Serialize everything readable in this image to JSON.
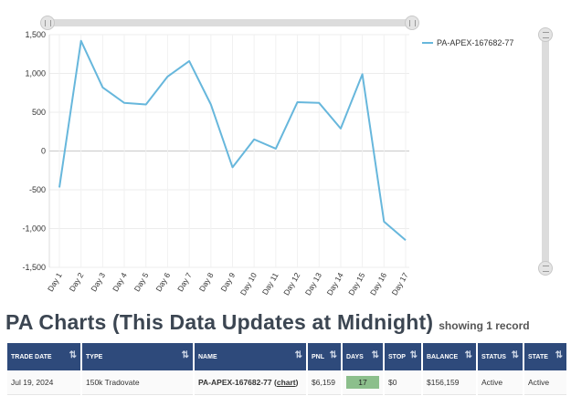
{
  "chart_data": {
    "type": "line",
    "categories": [
      "Day 1",
      "Day 2",
      "Day 3",
      "Day 4",
      "Day 5",
      "Day 6",
      "Day 7",
      "Day 8",
      "Day 9",
      "Day 10",
      "Day 11",
      "Day 12",
      "Day 13",
      "Day 14",
      "Day 15",
      "Day 16",
      "Day 17"
    ],
    "series": [
      {
        "name": "PA-APEX-167682-77",
        "values": [
          -470,
          1420,
          820,
          620,
          600,
          960,
          1160,
          600,
          -210,
          150,
          30,
          630,
          620,
          290,
          990,
          -910,
          -1150
        ]
      }
    ],
    "yticks": [
      "1,500",
      "1,000",
      "500",
      "0",
      "-500",
      "-1,000",
      "-1,500"
    ],
    "ylim": [
      -1500,
      1500
    ],
    "grid": true,
    "color": "#67b7dc",
    "legend": "top-right"
  },
  "heading": {
    "title": "PA Charts (This Data Updates at Midnight)",
    "count": "showing 1 record"
  },
  "table": {
    "headers": [
      "TRADE DATE",
      "TYPE",
      "NAME",
      "PNL",
      "DAYS",
      "STOP",
      "BALANCE",
      "STATUS",
      "STATE"
    ],
    "row": {
      "trade_date": "Jul 19, 2024",
      "type": "150k Tradovate",
      "name": "PA-APEX-167682-77",
      "chart_link": "chart",
      "pnl": "$6,159",
      "days": "17",
      "stop": "$0",
      "balance": "$156,159",
      "status": "Active",
      "state": "Active"
    }
  },
  "icons": {
    "sort": "sort-arrows-icon",
    "slider_handle": "grip-icon"
  }
}
